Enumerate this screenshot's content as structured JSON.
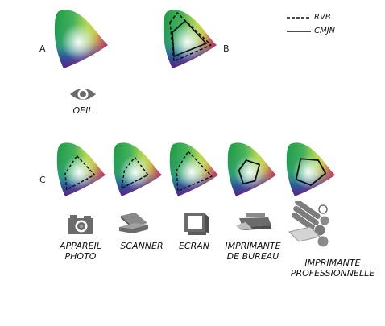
{
  "labels": {
    "a": "A",
    "b": "B",
    "c": "C"
  },
  "legend": {
    "rvb": "RVB",
    "cmjn": "CMJN"
  },
  "eye_caption": "OEIL",
  "devices": [
    {
      "icon": "camera-icon",
      "lines": [
        "APPAREIL",
        "PHOTO"
      ]
    },
    {
      "icon": "scanner-icon",
      "lines": [
        "SCANNER"
      ]
    },
    {
      "icon": "monitor-icon",
      "lines": [
        "ECRAN"
      ]
    },
    {
      "icon": "desktop-printer-icon",
      "lines": [
        "IMPRIMANTE",
        "DE BUREAU"
      ]
    },
    {
      "icon": "press-icon",
      "lines": [
        "IMPRIMANTE",
        "PROFESSIONNELLE"
      ]
    }
  ],
  "colors": {
    "green": "#2a9d4a",
    "yellow": "#e8e63c",
    "red": "#e0213a",
    "blue": "#2a3a9a",
    "violet": "#6a2a8a",
    "icon_gray": "#6b6b6b"
  }
}
